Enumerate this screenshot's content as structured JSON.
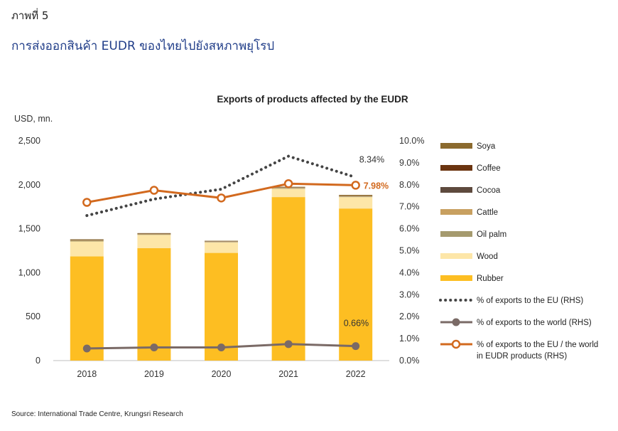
{
  "header": {
    "figure_label": "ภาพที่ 5",
    "title": "การส่งออกสินค้า EUDR ของไทยไปยังสหภาพยุโรป"
  },
  "source": "Source: International Trade Centre, Krungsri Research",
  "chart_data": {
    "type": "bar",
    "stacked": true,
    "title": "Exports of products affected by the EUDR",
    "ylabel": "USD, mn.",
    "categories": [
      "2018",
      "2019",
      "2020",
      "2021",
      "2022"
    ],
    "ylim": [
      0,
      2500
    ],
    "yticks": [
      "0",
      "500",
      "1,000",
      "1,500",
      "2,000",
      "2,500"
    ],
    "y2lim": [
      0,
      10
    ],
    "y2ticks": [
      "0.0%",
      "1.0%",
      "2.0%",
      "3.0%",
      "4.0%",
      "5.0%",
      "6.0%",
      "7.0%",
      "8.0%",
      "9.0%",
      "10.0%"
    ],
    "series": [
      {
        "name": "Rubber",
        "color": "#FDBE22",
        "values": [
          1185,
          1280,
          1225,
          1860,
          1730
        ]
      },
      {
        "name": "Wood",
        "color": "#FDE6A8",
        "values": [
          170,
          150,
          120,
          95,
          130
        ]
      },
      {
        "name": "Oil palm",
        "color": "#A59A6E",
        "values": [
          8,
          6,
          5,
          6,
          7
        ]
      },
      {
        "name": "Cattle",
        "color": "#C8A060",
        "values": [
          5,
          4,
          4,
          6,
          6
        ]
      },
      {
        "name": "Cocoa",
        "color": "#5E4A3E",
        "values": [
          2,
          2,
          2,
          2,
          2
        ]
      },
      {
        "name": "Coffee",
        "color": "#6B3410",
        "values": [
          2,
          2,
          2,
          2,
          2
        ]
      },
      {
        "name": "Soya",
        "color": "#8B6A2E",
        "values": [
          8,
          6,
          5,
          6,
          8
        ]
      }
    ],
    "lines": [
      {
        "name": "% of exports to the EU (RHS)",
        "color": "#444444",
        "style": "dotted",
        "axis": "right",
        "values": [
          6.6,
          7.35,
          7.8,
          9.3,
          8.34
        ]
      },
      {
        "name": "% of exports to the world (RHS)",
        "color": "#7A6A66",
        "style": "solid-marker",
        "axis": "right",
        "values": [
          0.55,
          0.6,
          0.6,
          0.75,
          0.66
        ]
      },
      {
        "name": "% of exports to the EU / the world in EUDR products (RHS)",
        "color": "#D2691E",
        "style": "solid-open-marker",
        "axis": "right",
        "values": [
          7.2,
          7.75,
          7.4,
          8.05,
          7.98
        ]
      }
    ],
    "annotations": [
      {
        "text": "8.34%",
        "year": "2022",
        "value": 8.34,
        "color": "#333333"
      },
      {
        "text": "7.98%",
        "year": "2022",
        "value": 7.98,
        "color": "#D2691E",
        "bold": true
      },
      {
        "text": "0.66%",
        "year": "2022",
        "value": 0.66,
        "color": "#333333"
      }
    ],
    "legend": {
      "placement": "right",
      "items": [
        {
          "label": "Soya",
          "kind": "box",
          "color": "#8B6A2E"
        },
        {
          "label": "Coffee",
          "kind": "box",
          "color": "#6B3410"
        },
        {
          "label": "Cocoa",
          "kind": "box",
          "color": "#5E4A3E"
        },
        {
          "label": "Cattle",
          "kind": "box",
          "color": "#C8A060"
        },
        {
          "label": "Oil palm",
          "kind": "box",
          "color": "#A59A6E"
        },
        {
          "label": "Wood",
          "kind": "box",
          "color": "#FDE6A8"
        },
        {
          "label": "Rubber",
          "kind": "box",
          "color": "#FDBE22"
        },
        {
          "label": "% of exports to the EU (RHS)",
          "kind": "dotted",
          "color": "#444444"
        },
        {
          "label": "% of exports to the world (RHS)",
          "kind": "marker",
          "color": "#7A6A66"
        },
        {
          "label": "% of exports to the EU / the world",
          "label2": "in EUDR products (RHS)",
          "kind": "open-marker",
          "color": "#D2691E"
        }
      ]
    },
    "grid": false
  }
}
